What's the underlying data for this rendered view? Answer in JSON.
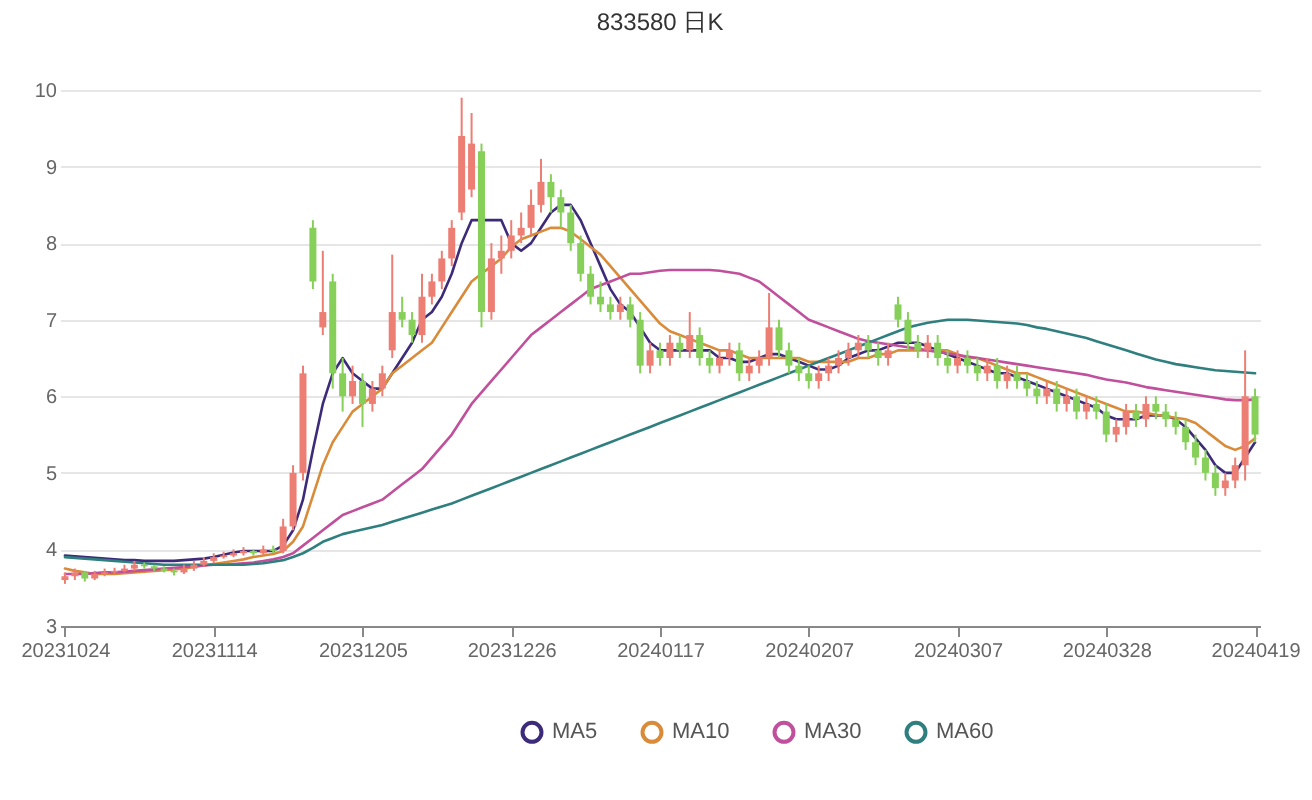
{
  "chart_data": {
    "type": "candlestick",
    "title": "833580 日K",
    "categories": [
      "20231024",
      null,
      null,
      null,
      null,
      null,
      null,
      null,
      null,
      null,
      null,
      null,
      null,
      null,
      null,
      "20231114",
      null,
      null,
      null,
      null,
      null,
      null,
      null,
      null,
      null,
      null,
      null,
      null,
      null,
      null,
      "20231205",
      null,
      null,
      null,
      null,
      null,
      null,
      null,
      null,
      null,
      null,
      null,
      null,
      null,
      null,
      "20231226",
      null,
      null,
      null,
      null,
      null,
      null,
      null,
      null,
      null,
      null,
      null,
      null,
      null,
      null,
      "20240117",
      null,
      null,
      null,
      null,
      null,
      null,
      null,
      null,
      null,
      null,
      null,
      null,
      null,
      null,
      "20240207",
      null,
      null,
      null,
      null,
      null,
      null,
      null,
      null,
      null,
      null,
      null,
      null,
      null,
      null,
      "20240307",
      null,
      null,
      null,
      null,
      null,
      null,
      null,
      null,
      null,
      null,
      null,
      null,
      null,
      null,
      "20240328",
      null,
      null,
      null,
      null,
      null,
      null,
      null,
      null,
      null,
      null,
      null,
      null,
      null,
      null,
      "20240419"
    ],
    "ohlc": [
      [
        3.6,
        3.7,
        3.55,
        3.65
      ],
      [
        3.65,
        3.75,
        3.6,
        3.7
      ],
      [
        3.7,
        3.72,
        3.58,
        3.62
      ],
      [
        3.62,
        3.72,
        3.6,
        3.68
      ],
      [
        3.68,
        3.75,
        3.65,
        3.7
      ],
      [
        3.7,
        3.76,
        3.68,
        3.72
      ],
      [
        3.72,
        3.8,
        3.7,
        3.75
      ],
      [
        3.75,
        3.85,
        3.72,
        3.8
      ],
      [
        3.8,
        3.83,
        3.75,
        3.78
      ],
      [
        3.78,
        3.8,
        3.72,
        3.75
      ],
      [
        3.75,
        3.78,
        3.7,
        3.72
      ],
      [
        3.72,
        3.75,
        3.66,
        3.7
      ],
      [
        3.7,
        3.8,
        3.68,
        3.75
      ],
      [
        3.75,
        3.85,
        3.72,
        3.8
      ],
      [
        3.8,
        3.9,
        3.78,
        3.85
      ],
      [
        3.85,
        3.95,
        3.82,
        3.9
      ],
      [
        3.9,
        3.97,
        3.88,
        3.92
      ],
      [
        3.92,
        4.0,
        3.9,
        3.95
      ],
      [
        3.95,
        4.03,
        3.92,
        3.98
      ],
      [
        3.98,
        4.0,
        3.92,
        3.95
      ],
      [
        3.95,
        4.05,
        3.92,
        4.0
      ],
      [
        4.0,
        4.05,
        3.95,
        3.98
      ],
      [
        3.98,
        4.4,
        3.95,
        4.3
      ],
      [
        4.3,
        5.1,
        4.25,
        5.0
      ],
      [
        5.0,
        6.4,
        4.9,
        6.3
      ],
      [
        8.2,
        8.3,
        7.4,
        7.5
      ],
      [
        6.9,
        7.9,
        6.8,
        7.1
      ],
      [
        7.5,
        7.6,
        6.1,
        6.3
      ],
      [
        6.3,
        6.5,
        5.8,
        6.0
      ],
      [
        6.0,
        6.4,
        5.9,
        6.2
      ],
      [
        6.2,
        6.3,
        5.6,
        5.9
      ],
      [
        5.9,
        6.2,
        5.8,
        6.1
      ],
      [
        6.1,
        6.4,
        6.0,
        6.3
      ],
      [
        6.6,
        7.85,
        6.5,
        7.1
      ],
      [
        7.1,
        7.3,
        6.9,
        7.0
      ],
      [
        7.0,
        7.1,
        6.7,
        6.8
      ],
      [
        6.8,
        7.6,
        6.7,
        7.3
      ],
      [
        7.3,
        7.6,
        7.2,
        7.5
      ],
      [
        7.5,
        7.9,
        7.4,
        7.8
      ],
      [
        7.8,
        8.3,
        7.7,
        8.2
      ],
      [
        8.4,
        9.9,
        8.3,
        9.4
      ],
      [
        8.7,
        9.7,
        8.6,
        9.3
      ],
      [
        9.2,
        9.3,
        6.9,
        7.1
      ],
      [
        7.1,
        8.0,
        7.0,
        7.8
      ],
      [
        7.8,
        8.1,
        7.6,
        7.9
      ],
      [
        7.9,
        8.3,
        7.8,
        8.1
      ],
      [
        8.1,
        8.4,
        8.0,
        8.2
      ],
      [
        8.2,
        8.7,
        8.1,
        8.5
      ],
      [
        8.5,
        9.1,
        8.4,
        8.8
      ],
      [
        8.8,
        8.9,
        8.4,
        8.6
      ],
      [
        8.6,
        8.7,
        8.2,
        8.4
      ],
      [
        8.4,
        8.5,
        7.9,
        8.0
      ],
      [
        8.0,
        8.1,
        7.5,
        7.6
      ],
      [
        7.6,
        7.7,
        7.2,
        7.3
      ],
      [
        7.3,
        7.5,
        7.1,
        7.2
      ],
      [
        7.2,
        7.3,
        7.0,
        7.1
      ],
      [
        7.1,
        7.3,
        7.0,
        7.2
      ],
      [
        7.2,
        7.3,
        6.9,
        7.0
      ],
      [
        7.0,
        7.1,
        6.3,
        6.4
      ],
      [
        6.4,
        6.7,
        6.3,
        6.6
      ],
      [
        6.6,
        6.7,
        6.4,
        6.5
      ],
      [
        6.5,
        6.8,
        6.4,
        6.7
      ],
      [
        6.7,
        6.8,
        6.5,
        6.6
      ],
      [
        6.6,
        7.1,
        6.5,
        6.8
      ],
      [
        6.8,
        6.9,
        6.4,
        6.5
      ],
      [
        6.5,
        6.6,
        6.3,
        6.4
      ],
      [
        6.4,
        6.6,
        6.3,
        6.5
      ],
      [
        6.5,
        6.7,
        6.4,
        6.6
      ],
      [
        6.6,
        6.7,
        6.2,
        6.3
      ],
      [
        6.3,
        6.5,
        6.2,
        6.4
      ],
      [
        6.4,
        6.6,
        6.3,
        6.5
      ],
      [
        6.5,
        7.35,
        6.4,
        6.9
      ],
      [
        6.9,
        7.0,
        6.5,
        6.6
      ],
      [
        6.6,
        6.7,
        6.3,
        6.4
      ],
      [
        6.4,
        6.5,
        6.2,
        6.3
      ],
      [
        6.3,
        6.4,
        6.1,
        6.2
      ],
      [
        6.2,
        6.4,
        6.1,
        6.3
      ],
      [
        6.3,
        6.5,
        6.2,
        6.4
      ],
      [
        6.4,
        6.6,
        6.3,
        6.5
      ],
      [
        6.5,
        6.7,
        6.4,
        6.6
      ],
      [
        6.6,
        6.8,
        6.5,
        6.7
      ],
      [
        6.7,
        6.8,
        6.5,
        6.6
      ],
      [
        6.6,
        6.7,
        6.4,
        6.5
      ],
      [
        6.5,
        6.7,
        6.4,
        6.6
      ],
      [
        7.2,
        7.3,
        6.9,
        7.0
      ],
      [
        7.0,
        7.1,
        6.6,
        6.7
      ],
      [
        6.7,
        6.8,
        6.5,
        6.6
      ],
      [
        6.6,
        6.8,
        6.5,
        6.7
      ],
      [
        6.7,
        6.8,
        6.4,
        6.5
      ],
      [
        6.5,
        6.6,
        6.3,
        6.4
      ],
      [
        6.4,
        6.6,
        6.3,
        6.5
      ],
      [
        6.5,
        6.6,
        6.3,
        6.4
      ],
      [
        6.4,
        6.5,
        6.2,
        6.3
      ],
      [
        6.3,
        6.5,
        6.2,
        6.4
      ],
      [
        6.4,
        6.5,
        6.1,
        6.2
      ],
      [
        6.2,
        6.4,
        6.1,
        6.3
      ],
      [
        6.3,
        6.4,
        6.1,
        6.2
      ],
      [
        6.2,
        6.3,
        6.0,
        6.1
      ],
      [
        6.1,
        6.2,
        5.9,
        6.0
      ],
      [
        6.0,
        6.2,
        5.9,
        6.1
      ],
      [
        6.1,
        6.2,
        5.8,
        5.9
      ],
      [
        5.9,
        6.1,
        5.8,
        6.0
      ],
      [
        6.0,
        6.1,
        5.7,
        5.8
      ],
      [
        5.8,
        6.0,
        5.7,
        5.9
      ],
      [
        5.9,
        6.0,
        5.7,
        5.8
      ],
      [
        5.8,
        5.9,
        5.4,
        5.5
      ],
      [
        5.5,
        5.7,
        5.4,
        5.6
      ],
      [
        5.6,
        5.9,
        5.5,
        5.8
      ],
      [
        5.8,
        5.9,
        5.6,
        5.7
      ],
      [
        5.7,
        6.0,
        5.6,
        5.9
      ],
      [
        5.9,
        6.0,
        5.7,
        5.8
      ],
      [
        5.8,
        5.9,
        5.6,
        5.7
      ],
      [
        5.7,
        5.8,
        5.5,
        5.6
      ],
      [
        5.6,
        5.7,
        5.3,
        5.4
      ],
      [
        5.4,
        5.5,
        5.1,
        5.2
      ],
      [
        5.2,
        5.3,
        4.9,
        5.0
      ],
      [
        5.0,
        5.1,
        4.7,
        4.8
      ],
      [
        4.8,
        5.0,
        4.7,
        4.9
      ],
      [
        4.9,
        5.2,
        4.8,
        5.1
      ],
      [
        5.1,
        6.6,
        4.9,
        6.0
      ],
      [
        6.0,
        6.1,
        5.4,
        5.5
      ]
    ],
    "colors": [
      "#ec7e74",
      "#ec7e74",
      "#86d05a",
      "#ec7e74",
      "#ec7e74",
      "#ec7e74",
      "#ec7e74",
      "#ec7e74",
      "#86d05a",
      "#86d05a",
      "#86d05a",
      "#86d05a",
      "#ec7e74",
      "#ec7e74",
      "#ec7e74",
      "#ec7e74",
      "#ec7e74",
      "#ec7e74",
      "#ec7e74",
      "#86d05a",
      "#ec7e74",
      "#86d05a",
      "#ec7e74",
      "#ec7e74",
      "#ec7e74",
      "#86d05a",
      "#ec7e74",
      "#86d05a",
      "#86d05a",
      "#ec7e74",
      "#86d05a",
      "#ec7e74",
      "#ec7e74",
      "#ec7e74",
      "#86d05a",
      "#86d05a",
      "#ec7e74",
      "#ec7e74",
      "#ec7e74",
      "#ec7e74",
      "#ec7e74",
      "#ec7e74",
      "#86d05a",
      "#ec7e74",
      "#ec7e74",
      "#ec7e74",
      "#ec7e74",
      "#ec7e74",
      "#ec7e74",
      "#86d05a",
      "#86d05a",
      "#86d05a",
      "#86d05a",
      "#86d05a",
      "#86d05a",
      "#86d05a",
      "#ec7e74",
      "#86d05a",
      "#86d05a",
      "#ec7e74",
      "#86d05a",
      "#ec7e74",
      "#86d05a",
      "#ec7e74",
      "#86d05a",
      "#86d05a",
      "#ec7e74",
      "#ec7e74",
      "#86d05a",
      "#ec7e74",
      "#ec7e74",
      "#ec7e74",
      "#86d05a",
      "#86d05a",
      "#86d05a",
      "#86d05a",
      "#ec7e74",
      "#ec7e74",
      "#ec7e74",
      "#ec7e74",
      "#ec7e74",
      "#86d05a",
      "#86d05a",
      "#ec7e74",
      "#86d05a",
      "#86d05a",
      "#86d05a",
      "#ec7e74",
      "#86d05a",
      "#86d05a",
      "#ec7e74",
      "#86d05a",
      "#86d05a",
      "#ec7e74",
      "#86d05a",
      "#ec7e74",
      "#86d05a",
      "#86d05a",
      "#86d05a",
      "#ec7e74",
      "#86d05a",
      "#ec7e74",
      "#86d05a",
      "#ec7e74",
      "#86d05a",
      "#86d05a",
      "#ec7e74",
      "#ec7e74",
      "#86d05a",
      "#ec7e74",
      "#86d05a",
      "#86d05a",
      "#86d05a",
      "#86d05a",
      "#86d05a",
      "#86d05a",
      "#86d05a",
      "#ec7e74",
      "#ec7e74",
      "#ec7e74",
      "#86d05a"
    ],
    "series": [
      {
        "name": "MA5",
        "type": "line",
        "color": "#3d2b7a",
        "values": [
          3.92,
          3.91,
          3.9,
          3.89,
          3.88,
          3.87,
          3.86,
          3.86,
          3.85,
          3.85,
          3.85,
          3.85,
          3.86,
          3.87,
          3.88,
          3.9,
          3.93,
          3.96,
          3.98,
          3.98,
          3.98,
          3.98,
          4.05,
          4.25,
          4.65,
          5.3,
          5.9,
          6.3,
          6.5,
          6.3,
          6.2,
          6.1,
          6.1,
          6.3,
          6.5,
          6.7,
          7.0,
          7.1,
          7.3,
          7.6,
          8.0,
          8.3,
          8.3,
          8.3,
          8.3,
          8.0,
          7.9,
          8.0,
          8.2,
          8.4,
          8.5,
          8.5,
          8.3,
          8.0,
          7.7,
          7.4,
          7.2,
          7.1,
          6.9,
          6.7,
          6.6,
          6.6,
          6.6,
          6.6,
          6.6,
          6.6,
          6.5,
          6.5,
          6.45,
          6.45,
          6.5,
          6.55,
          6.55,
          6.5,
          6.45,
          6.4,
          6.35,
          6.35,
          6.4,
          6.5,
          6.55,
          6.6,
          6.6,
          6.65,
          6.7,
          6.7,
          6.7,
          6.65,
          6.6,
          6.55,
          6.5,
          6.45,
          6.4,
          6.35,
          6.3,
          6.3,
          6.25,
          6.2,
          6.15,
          6.1,
          6.05,
          6.0,
          5.95,
          5.9,
          5.85,
          5.75,
          5.7,
          5.7,
          5.7,
          5.75,
          5.75,
          5.75,
          5.7,
          5.6,
          5.45,
          5.3,
          5.1,
          5.0,
          5.0,
          5.2,
          5.4
        ]
      },
      {
        "name": "MA10",
        "type": "line",
        "color": "#d98b3a",
        "values": [
          3.75,
          3.72,
          3.7,
          3.68,
          3.68,
          3.68,
          3.69,
          3.7,
          3.71,
          3.72,
          3.73,
          3.74,
          3.75,
          3.77,
          3.79,
          3.81,
          3.83,
          3.85,
          3.87,
          3.9,
          3.92,
          3.94,
          3.98,
          4.1,
          4.3,
          4.7,
          5.1,
          5.4,
          5.6,
          5.8,
          5.9,
          6.0,
          6.1,
          6.3,
          6.4,
          6.5,
          6.6,
          6.7,
          6.9,
          7.1,
          7.3,
          7.5,
          7.6,
          7.7,
          7.8,
          7.95,
          8.05,
          8.1,
          8.15,
          8.2,
          8.2,
          8.15,
          8.05,
          7.95,
          7.85,
          7.7,
          7.55,
          7.4,
          7.25,
          7.1,
          6.95,
          6.85,
          6.8,
          6.75,
          6.7,
          6.65,
          6.6,
          6.6,
          6.55,
          6.5,
          6.5,
          6.5,
          6.5,
          6.5,
          6.5,
          6.45,
          6.45,
          6.45,
          6.45,
          6.45,
          6.5,
          6.5,
          6.55,
          6.55,
          6.6,
          6.6,
          6.6,
          6.6,
          6.6,
          6.6,
          6.55,
          6.5,
          6.5,
          6.45,
          6.4,
          6.35,
          6.3,
          6.3,
          6.25,
          6.2,
          6.15,
          6.1,
          6.05,
          6.0,
          5.95,
          5.9,
          5.85,
          5.8,
          5.8,
          5.78,
          5.76,
          5.74,
          5.72,
          5.7,
          5.65,
          5.55,
          5.45,
          5.35,
          5.3,
          5.35,
          5.45
        ]
      },
      {
        "name": "MA30",
        "type": "line",
        "color": "#c04f9c",
        "values": [
          3.68,
          3.68,
          3.68,
          3.69,
          3.7,
          3.7,
          3.71,
          3.72,
          3.73,
          3.74,
          3.75,
          3.76,
          3.77,
          3.78,
          3.79,
          3.8,
          3.8,
          3.81,
          3.82,
          3.83,
          3.85,
          3.87,
          3.9,
          3.95,
          4.05,
          4.15,
          4.25,
          4.35,
          4.45,
          4.5,
          4.55,
          4.6,
          4.65,
          4.75,
          4.85,
          4.95,
          5.05,
          5.2,
          5.35,
          5.5,
          5.7,
          5.9,
          6.05,
          6.2,
          6.35,
          6.5,
          6.65,
          6.8,
          6.9,
          7.0,
          7.1,
          7.2,
          7.3,
          7.4,
          7.45,
          7.5,
          7.55,
          7.6,
          7.6,
          7.62,
          7.64,
          7.65,
          7.65,
          7.65,
          7.65,
          7.65,
          7.64,
          7.62,
          7.6,
          7.55,
          7.5,
          7.4,
          7.3,
          7.2,
          7.1,
          7.0,
          6.95,
          6.9,
          6.85,
          6.8,
          6.75,
          6.72,
          6.7,
          6.68,
          6.66,
          6.64,
          6.62,
          6.6,
          6.58,
          6.56,
          6.54,
          6.52,
          6.5,
          6.48,
          6.46,
          6.44,
          6.42,
          6.4,
          6.38,
          6.36,
          6.34,
          6.32,
          6.3,
          6.28,
          6.25,
          6.22,
          6.2,
          6.18,
          6.15,
          6.12,
          6.1,
          6.08,
          6.06,
          6.04,
          6.02,
          6.0,
          5.98,
          5.96,
          5.95,
          5.95,
          5.96
        ]
      },
      {
        "name": "MA60",
        "type": "line",
        "color": "#2f7f7f",
        "values": [
          3.9,
          3.89,
          3.88,
          3.87,
          3.86,
          3.85,
          3.84,
          3.83,
          3.82,
          3.81,
          3.8,
          3.8,
          3.8,
          3.8,
          3.8,
          3.8,
          3.8,
          3.8,
          3.8,
          3.81,
          3.82,
          3.84,
          3.86,
          3.9,
          3.95,
          4.02,
          4.1,
          4.15,
          4.2,
          4.23,
          4.26,
          4.29,
          4.32,
          4.36,
          4.4,
          4.44,
          4.48,
          4.52,
          4.56,
          4.6,
          4.65,
          4.7,
          4.75,
          4.8,
          4.85,
          4.9,
          4.95,
          5.0,
          5.05,
          5.1,
          5.15,
          5.2,
          5.25,
          5.3,
          5.35,
          5.4,
          5.45,
          5.5,
          5.55,
          5.6,
          5.65,
          5.7,
          5.75,
          5.8,
          5.85,
          5.9,
          5.95,
          6.0,
          6.05,
          6.1,
          6.15,
          6.2,
          6.25,
          6.3,
          6.35,
          6.4,
          6.45,
          6.5,
          6.55,
          6.6,
          6.65,
          6.7,
          6.75,
          6.8,
          6.85,
          6.9,
          6.93,
          6.96,
          6.98,
          7.0,
          7.0,
          7.0,
          6.99,
          6.98,
          6.97,
          6.96,
          6.95,
          6.93,
          6.9,
          6.88,
          6.85,
          6.82,
          6.79,
          6.76,
          6.72,
          6.68,
          6.64,
          6.6,
          6.56,
          6.52,
          6.48,
          6.45,
          6.42,
          6.4,
          6.38,
          6.36,
          6.34,
          6.33,
          6.32,
          6.31,
          6.3
        ]
      }
    ],
    "ylim": [
      3,
      10
    ],
    "yticks": [
      3,
      4,
      5,
      6,
      7,
      8,
      9,
      10
    ],
    "grid": "y",
    "legend": "bottom"
  }
}
